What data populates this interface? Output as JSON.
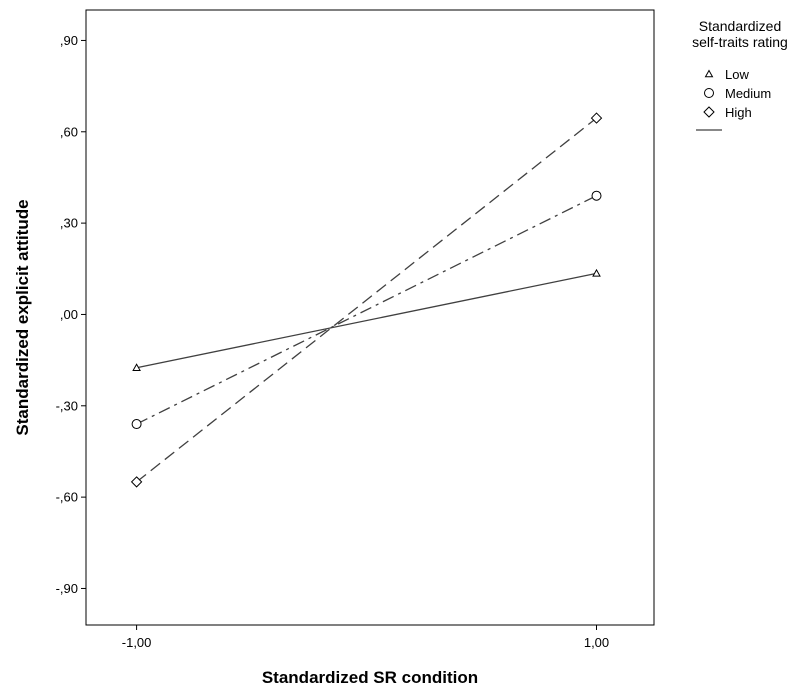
{
  "chart_data": {
    "type": "line",
    "xlabel": "Standardized SR condition",
    "ylabel": "Standardized explicit attitude",
    "x": [
      -1,
      1
    ],
    "x_tick_labels": [
      "-1,00",
      "1,00"
    ],
    "xlim": [
      -1.22,
      1.25
    ],
    "ylim": [
      -1.02,
      1.0
    ],
    "y_ticks": [
      0.9,
      0.6,
      0.3,
      0.0,
      -0.3,
      -0.6,
      -0.9
    ],
    "y_tick_labels": [
      ",90",
      ",60",
      ",30",
      ",00",
      "-,30",
      "-,60",
      "-,90"
    ],
    "grid": false,
    "legend": {
      "title_lines": [
        "Standardized",
        "self-traits rating"
      ],
      "placement": "right"
    },
    "series": [
      {
        "name": "Low",
        "marker": "triangle",
        "line": "solid",
        "values": [
          -0.175,
          0.135
        ]
      },
      {
        "name": "Medium",
        "marker": "circle",
        "line": "dash-dot",
        "values": [
          -0.36,
          0.39
        ]
      },
      {
        "name": "High",
        "marker": "diamond",
        "line": "dashed",
        "values": [
          -0.55,
          0.645
        ]
      }
    ]
  }
}
